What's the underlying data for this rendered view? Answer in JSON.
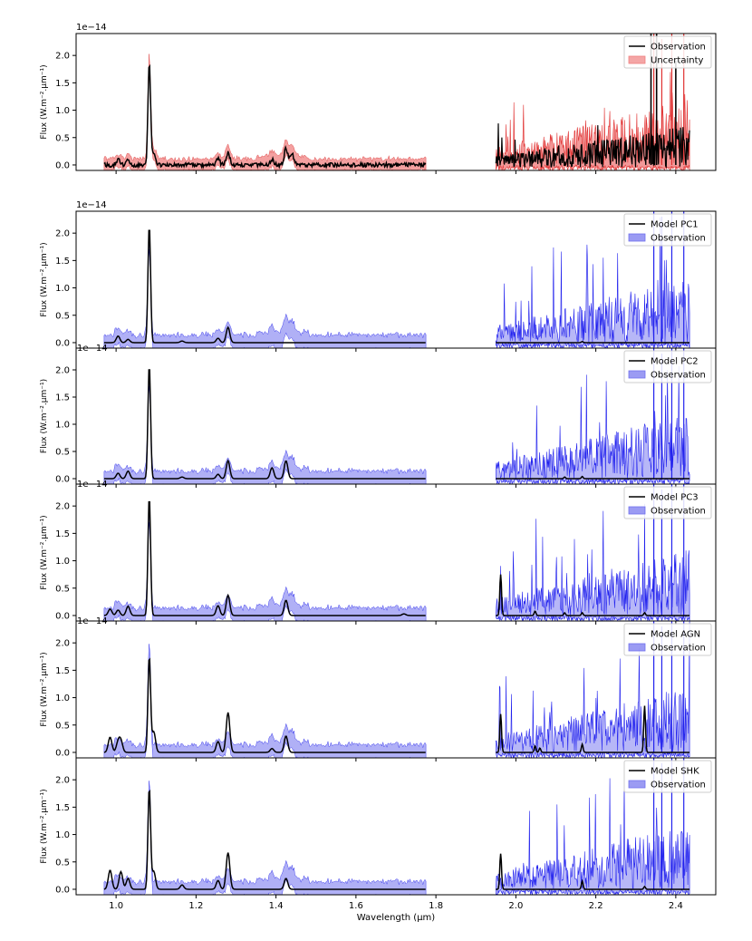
{
  "chart_data": [
    {
      "type": "line",
      "panel": "top",
      "ylabel": "Flux (W.m⁻².μm⁻¹)",
      "offset_text": "1e−14",
      "xlim": [
        0.9,
        2.5
      ],
      "ylim": [
        -0.1,
        2.4
      ],
      "yticks": [
        "0.0",
        "0.5",
        "1.0",
        "1.5",
        "2.0"
      ],
      "legend": [
        {
          "label": "Observation",
          "style": "line",
          "color": "#000000"
        },
        {
          "label": "Uncertainty",
          "style": "band",
          "color": "#f08080"
        }
      ],
      "series": [
        {
          "name": "Observation",
          "color": "#000000",
          "peaks": [
            [
              1.083,
              1.88
            ],
            [
              1.094,
              0.2
            ],
            [
              1.005,
              0.1
            ],
            [
              1.03,
              0.08
            ],
            [
              1.255,
              0.12
            ],
            [
              1.28,
              0.22
            ],
            [
              1.39,
              0.1
            ],
            [
              1.425,
              0.3
            ],
            [
              1.44,
              0.2
            ]
          ],
          "k_band_peak_max": 2.3
        },
        {
          "name": "Uncertainty",
          "color": "#f08080",
          "band_halfwidth": 0.12
        }
      ]
    },
    {
      "type": "line",
      "panel": "PC1",
      "ylabel": "Flux (W.m⁻².μm⁻¹)",
      "offset_text": "1e−14",
      "xlim": [
        0.9,
        2.5
      ],
      "ylim": [
        -0.1,
        2.4
      ],
      "yticks": [
        "0.0",
        "0.5",
        "1.0",
        "1.5",
        "2.0"
      ],
      "legend": [
        {
          "label": "Model PC1",
          "style": "line",
          "color": "#000000"
        },
        {
          "label": "Observation",
          "style": "band",
          "color": "#7070ee"
        }
      ],
      "model_peaks": [
        [
          1.083,
          2.15
        ],
        [
          1.005,
          0.12
        ],
        [
          1.03,
          0.06
        ],
        [
          1.28,
          0.28
        ],
        [
          1.255,
          0.08
        ],
        [
          1.165,
          0.03
        ],
        [
          2.166,
          0.02
        ]
      ]
    },
    {
      "type": "line",
      "panel": "PC2",
      "ylabel": "Flux (W.m⁻².μm⁻¹)",
      "offset_text": "1e−14",
      "xlim": [
        0.9,
        2.5
      ],
      "ylim": [
        -0.1,
        2.4
      ],
      "yticks": [
        "0.0",
        "0.5",
        "1.0",
        "1.5",
        "2.0"
      ],
      "legend": [
        {
          "label": "Model PC2",
          "style": "line",
          "color": "#000000"
        },
        {
          "label": "Observation",
          "style": "band",
          "color": "#7070ee"
        }
      ],
      "model_peaks": [
        [
          1.083,
          2.1
        ],
        [
          1.005,
          0.1
        ],
        [
          1.03,
          0.14
        ],
        [
          1.255,
          0.08
        ],
        [
          1.28,
          0.33
        ],
        [
          1.39,
          0.2
        ],
        [
          1.425,
          0.33
        ],
        [
          1.165,
          0.03
        ],
        [
          2.122,
          0.03
        ],
        [
          2.166,
          0.04
        ]
      ]
    },
    {
      "type": "line",
      "panel": "PC3",
      "ylabel": "Flux (W.m⁻².μm⁻¹)",
      "offset_text": "1e−14",
      "xlim": [
        0.9,
        2.5
      ],
      "ylim": [
        -0.1,
        2.4
      ],
      "yticks": [
        "0.0",
        "0.5",
        "1.0",
        "1.5",
        "2.0"
      ],
      "legend": [
        {
          "label": "Model PC3",
          "style": "line",
          "color": "#000000"
        },
        {
          "label": "Observation",
          "style": "band",
          "color": "#7070ee"
        }
      ],
      "model_peaks": [
        [
          1.083,
          2.18
        ],
        [
          0.985,
          0.12
        ],
        [
          1.005,
          0.1
        ],
        [
          1.03,
          0.17
        ],
        [
          1.255,
          0.18
        ],
        [
          1.28,
          0.37
        ],
        [
          1.425,
          0.28
        ],
        [
          1.72,
          0.03
        ],
        [
          1.962,
          0.75
        ],
        [
          2.048,
          0.08
        ],
        [
          2.122,
          0.05
        ],
        [
          2.166,
          0.05
        ],
        [
          2.322,
          0.05
        ]
      ]
    },
    {
      "type": "line",
      "panel": "AGN",
      "ylabel": "Flux (W.m⁻².μm⁻¹)",
      "offset_text": "1e−14",
      "xlim": [
        0.9,
        2.5
      ],
      "ylim": [
        -0.1,
        2.4
      ],
      "yticks": [
        "0.0",
        "0.5",
        "1.0",
        "1.5",
        "2.0"
      ],
      "legend": [
        {
          "label": "Model AGN",
          "style": "line",
          "color": "#000000"
        },
        {
          "label": "Observation",
          "style": "band",
          "color": "#7070ee"
        }
      ],
      "model_peaks": [
        [
          1.083,
          1.75
        ],
        [
          1.094,
          0.38
        ],
        [
          0.985,
          0.28
        ],
        [
          1.005,
          0.18
        ],
        [
          1.012,
          0.2
        ],
        [
          1.255,
          0.2
        ],
        [
          1.28,
          0.73
        ],
        [
          1.39,
          0.07
        ],
        [
          1.425,
          0.3
        ],
        [
          1.962,
          0.7
        ],
        [
          2.048,
          0.12
        ],
        [
          2.06,
          0.08
        ],
        [
          2.166,
          0.15
        ],
        [
          2.322,
          0.85
        ]
      ]
    },
    {
      "type": "line",
      "panel": "SHK",
      "ylabel": "Flux (W.m⁻².μm⁻¹)",
      "offset_text": "",
      "xlim": [
        0.9,
        2.5
      ],
      "ylim": [
        -0.1,
        2.4
      ],
      "yticks": [
        "0.0",
        "0.5",
        "1.0",
        "1.5",
        "2.0"
      ],
      "xticks": [
        "1.0",
        "1.2",
        "1.4",
        "1.6",
        "1.8",
        "2.0",
        "2.2",
        "2.4"
      ],
      "xlabel": "Wavelength (μm)",
      "legend": [
        {
          "label": "Model SHK",
          "style": "line",
          "color": "#000000"
        },
        {
          "label": "Observation",
          "style": "band",
          "color": "#7070ee"
        }
      ],
      "model_peaks": [
        [
          1.083,
          1.85
        ],
        [
          1.094,
          0.33
        ],
        [
          0.985,
          0.35
        ],
        [
          1.012,
          0.32
        ],
        [
          1.03,
          0.2
        ],
        [
          1.165,
          0.08
        ],
        [
          1.255,
          0.16
        ],
        [
          1.28,
          0.67
        ],
        [
          1.425,
          0.2
        ],
        [
          1.962,
          0.65
        ],
        [
          2.166,
          0.15
        ],
        [
          2.322,
          0.05
        ]
      ]
    }
  ],
  "spectrum": {
    "j_band_range": [
      0.97,
      1.775
    ],
    "k_band_range": [
      1.95,
      2.435
    ],
    "observation_band_halfwidth": 0.15
  }
}
